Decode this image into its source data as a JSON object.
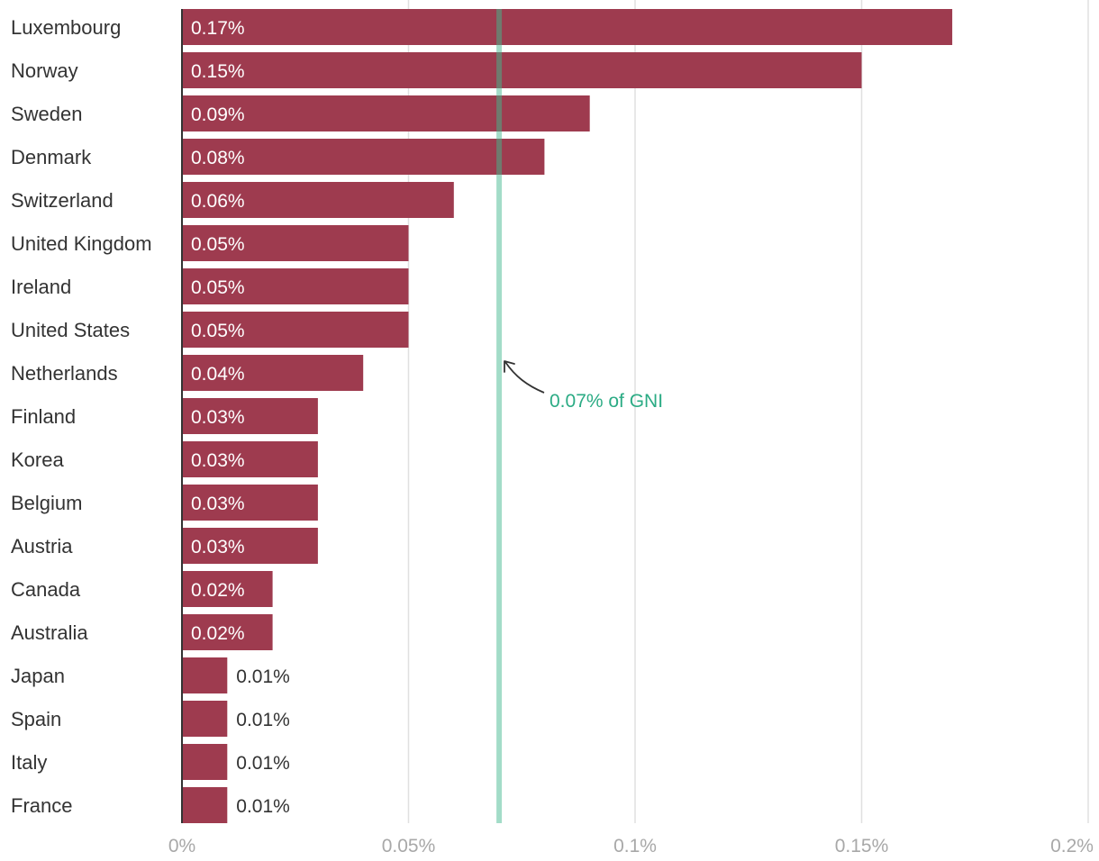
{
  "chart_data": {
    "type": "bar",
    "orientation": "horizontal",
    "categories": [
      "Luxembourg",
      "Norway",
      "Sweden",
      "Denmark",
      "Switzerland",
      "United Kingdom",
      "Ireland",
      "United States",
      "Netherlands",
      "Finland",
      "Korea",
      "Belgium",
      "Austria",
      "Canada",
      "Australia",
      "Japan",
      "Spain",
      "Italy",
      "France"
    ],
    "values": [
      0.17,
      0.15,
      0.09,
      0.08,
      0.06,
      0.05,
      0.05,
      0.05,
      0.04,
      0.03,
      0.03,
      0.03,
      0.03,
      0.02,
      0.02,
      0.01,
      0.01,
      0.01,
      0.01
    ],
    "data_labels": [
      "0.17%",
      "0.15%",
      "0.09%",
      "0.08%",
      "0.06%",
      "0.05%",
      "0.05%",
      "0.05%",
      "0.04%",
      "0.03%",
      "0.03%",
      "0.03%",
      "0.03%",
      "0.02%",
      "0.02%",
      "0.01%",
      "0.01%",
      "0.01%",
      "0.01%"
    ],
    "xlim": [
      0,
      0.2
    ],
    "x_ticks": [
      0,
      0.05,
      0.1,
      0.15,
      0.2
    ],
    "x_tick_labels": [
      "0%",
      "0.05%",
      "0.1%",
      "0.15%",
      "0.2%"
    ],
    "grid": true,
    "reference_line": {
      "value": 0.07,
      "label": "0.07% of GNI",
      "color": "#a3dcc8",
      "label_color": "#2bab84"
    },
    "colors": {
      "bar": "#9e3b4f",
      "label_inside": "#ffffff",
      "label_outside": "#333333",
      "grid": "#e0e0e0",
      "axis": "#333333"
    }
  }
}
